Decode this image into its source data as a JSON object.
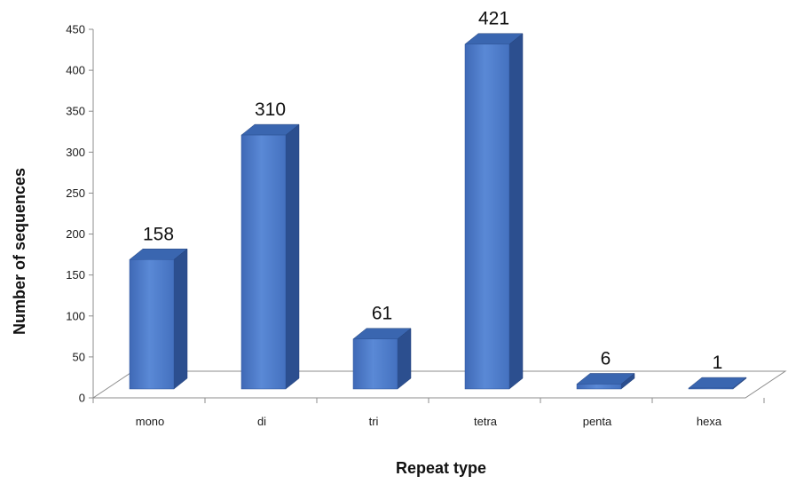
{
  "chart_data": {
    "type": "bar",
    "categories": [
      "mono",
      "di",
      "tri",
      "tetra",
      "penta",
      "hexa"
    ],
    "values": [
      158,
      310,
      61,
      421,
      6,
      1
    ],
    "data_labels": [
      "158",
      "310",
      "61",
      "421",
      "6",
      "1"
    ],
    "y_ticks": [
      "0",
      "50",
      "100",
      "150",
      "200",
      "250",
      "300",
      "350",
      "400",
      "450"
    ],
    "ylim": [
      0,
      450
    ],
    "xlabel": "Repeat type",
    "ylabel": "Number of sequences",
    "grid": false,
    "legend": "none",
    "three_d": true,
    "colors": {
      "bar_front": "#4a78c8",
      "bar_side": "#2c4f8f",
      "bar_top": "#3a66b0",
      "floor": "#ffffff",
      "axis": "#8c8c8c"
    }
  }
}
